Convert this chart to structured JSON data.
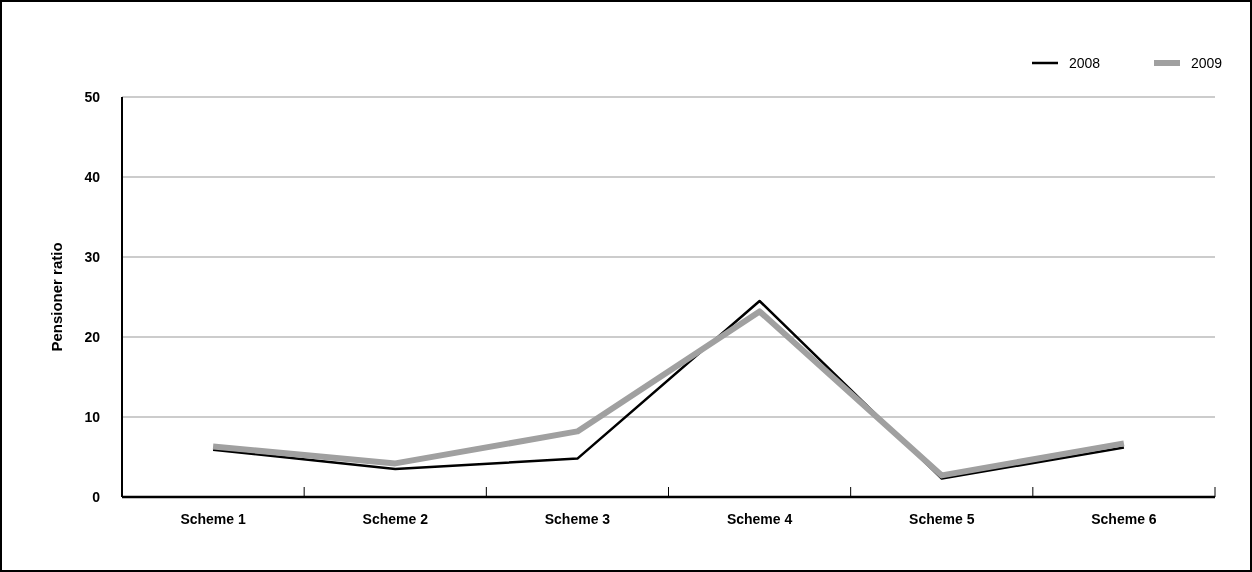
{
  "chart_data": {
    "type": "line",
    "ylabel": "Pensioner ratio",
    "categories": [
      "Scheme 1",
      "Scheme 2",
      "Scheme 3",
      "Scheme 4",
      "Scheme 5",
      "Scheme 6"
    ],
    "series": [
      {
        "name": "2008",
        "color": "#000000",
        "values": [
          5.9,
          3.5,
          4.8,
          24.5,
          2.3,
          6.2
        ]
      },
      {
        "name": "2009",
        "color": "#a0a0a0",
        "values": [
          6.3,
          4.2,
          8.2,
          23.2,
          2.7,
          6.7
        ]
      }
    ],
    "ylim": [
      0,
      50
    ],
    "yticks": [
      0,
      10,
      20,
      30,
      40,
      50
    ],
    "grid": "y",
    "legend": "top right"
  }
}
